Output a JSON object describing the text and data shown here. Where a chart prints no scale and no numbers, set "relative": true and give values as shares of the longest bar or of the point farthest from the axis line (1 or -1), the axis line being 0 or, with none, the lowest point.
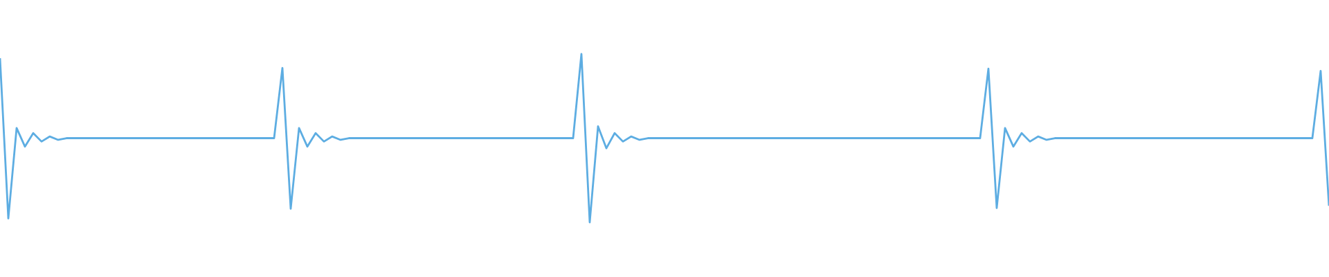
{
  "chart_data": {
    "type": "line",
    "relative": true,
    "categories": [
      null,
      null,
      null,
      null,
      null,
      null,
      null,
      null,
      null,
      null,
      null,
      null,
      null,
      null,
      null,
      null,
      null,
      null,
      null,
      null,
      null,
      null,
      null,
      null,
      null,
      null,
      null,
      null,
      null,
      null,
      null,
      null,
      null,
      null,
      null,
      null,
      null,
      null,
      null,
      null,
      null,
      null,
      null,
      null,
      null,
      null,
      null,
      null,
      null,
      null,
      null,
      null,
      null,
      null,
      null,
      null,
      null,
      null,
      null,
      null,
      null,
      null,
      null,
      null,
      null,
      null,
      null,
      null,
      null,
      null,
      null,
      null,
      null,
      null,
      null,
      null,
      null,
      null,
      null,
      null,
      null,
      null,
      null,
      null,
      null,
      null,
      null,
      null,
      null,
      null,
      null,
      null,
      null,
      null,
      null,
      null,
      null,
      null,
      null,
      null,
      null,
      null,
      null,
      null,
      null,
      null,
      null,
      null,
      null,
      null,
      null,
      null,
      null,
      null,
      null,
      null,
      null,
      null,
      null,
      null,
      null,
      null,
      null,
      null,
      null,
      null,
      null,
      null,
      null,
      null,
      null,
      null,
      null,
      null,
      null,
      null,
      null,
      null,
      null,
      null,
      null,
      null,
      null,
      null,
      null,
      null,
      null,
      null,
      null,
      null,
      null,
      null,
      null,
      null,
      null,
      null,
      null,
      null,
      null,
      null,
      null
    ],
    "series": [
      {
        "color": "#5dade2",
        "values": [
          0.975,
          0.023,
          0.56,
          0.45,
          0.53,
          0.48,
          0.51,
          0.49,
          0.5,
          0.5,
          0.5,
          0.5,
          0.5,
          0.5,
          0.5,
          0.5,
          0.5,
          0.5,
          0.5,
          0.5,
          0.5,
          0.5,
          0.5,
          0.5,
          0.5,
          0.5,
          0.5,
          0.5,
          0.5,
          0.5,
          0.5,
          0.5,
          0.5,
          0.5,
          0.917,
          0.081,
          0.56,
          0.45,
          0.53,
          0.48,
          0.51,
          0.49,
          0.5,
          0.5,
          0.5,
          0.5,
          0.5,
          0.5,
          0.5,
          0.5,
          0.5,
          0.5,
          0.5,
          0.5,
          0.5,
          0.5,
          0.5,
          0.5,
          0.5,
          0.5,
          0.5,
          0.5,
          0.5,
          0.5,
          0.5,
          0.5,
          0.5,
          0.5,
          0.5,
          0.5,
          1,
          0,
          0.57,
          0.44,
          0.53,
          0.48,
          0.51,
          0.49,
          0.5,
          0.5,
          0.5,
          0.5,
          0.5,
          0.5,
          0.5,
          0.5,
          0.5,
          0.5,
          0.5,
          0.5,
          0.5,
          0.5,
          0.5,
          0.5,
          0.5,
          0.5,
          0.5,
          0.5,
          0.5,
          0.5,
          0.5,
          0.5,
          0.5,
          0.5,
          0.5,
          0.5,
          0.5,
          0.5,
          0.5,
          0.5,
          0.5,
          0.5,
          0.5,
          0.5,
          0.5,
          0.5,
          0.5,
          0.5,
          0.5,
          0.913,
          0.085,
          0.56,
          0.45,
          0.53,
          0.48,
          0.51,
          0.49,
          0.5,
          0.5,
          0.5,
          0.5,
          0.5,
          0.5,
          0.5,
          0.5,
          0.5,
          0.5,
          0.5,
          0.5,
          0.5,
          0.5,
          0.5,
          0.5,
          0.5,
          0.5,
          0.5,
          0.5,
          0.5,
          0.5,
          0.5,
          0.5,
          0.5,
          0.5,
          0.5,
          0.5,
          0.5,
          0.5,
          0.5,
          0.5,
          0.9,
          0.098
        ]
      }
    ]
  }
}
